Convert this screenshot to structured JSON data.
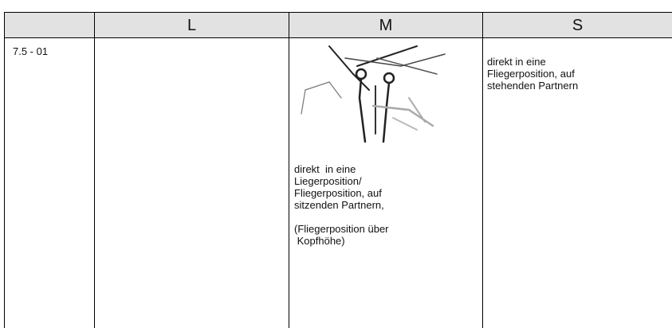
{
  "table": {
    "header": [
      "L",
      "M",
      "S"
    ],
    "row": {
      "label": "7.5 - 01",
      "m_cell": {
        "paragraphs": [
          [
            "direkt  in eine",
            "Liegerposition/",
            "Fliegerposition, auf",
            "sitzenden Partnern,"
          ],
          [
            "(Fliegerposition über",
            " Kopfhöhe)"
          ]
        ]
      },
      "s_cell": [
        "direkt in eine",
        "Fliegerposition, auf",
        "stehenden Partnern"
      ]
    }
  }
}
